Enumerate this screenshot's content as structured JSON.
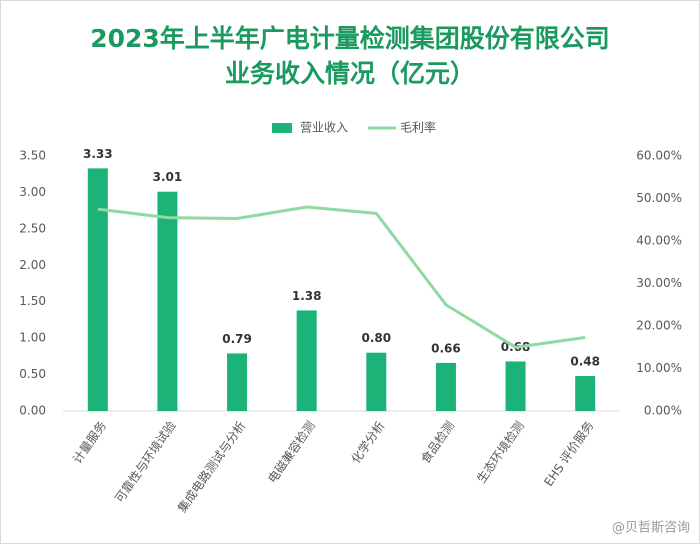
{
  "chart_data": {
    "type": "bar",
    "title": "2023年上半年广电计量检测集团股份有限公司",
    "subtitle": "业务收入情况（亿元）",
    "categories": [
      "计量服务",
      "可靠性与环境试验",
      "集成电路测试与分析",
      "电磁兼容检测",
      "化学分析",
      "食品检测",
      "生态环境检测",
      "EHS 评价服务"
    ],
    "series": [
      {
        "name": "营业收入",
        "type": "bar",
        "color": "#1bb377",
        "values": [
          3.33,
          3.01,
          0.79,
          1.38,
          0.8,
          0.66,
          0.68,
          0.48
        ],
        "value_labels": [
          "3.33",
          "3.01",
          "0.79",
          "1.38",
          "0.80",
          "0.66",
          "0.68",
          "0.48"
        ]
      },
      {
        "name": "毛利率",
        "type": "line",
        "axis": "y2",
        "color": "#8fd9a3",
        "values": [
          47.5,
          45.5,
          45.3,
          48,
          46.5,
          25,
          15,
          17.3
        ]
      }
    ],
    "ylim": [
      0,
      3.5
    ],
    "yticks": [
      {
        "value": 0,
        "label": "0.00"
      },
      {
        "value": 0.5,
        "label": "0.50"
      },
      {
        "value": 1,
        "label": "1.00"
      },
      {
        "value": 1.5,
        "label": "1.50"
      },
      {
        "value": 2,
        "label": "2.00"
      },
      {
        "value": 2.5,
        "label": "2.50"
      },
      {
        "value": 3,
        "label": "3.00"
      },
      {
        "value": 3.5,
        "label": "3.50"
      }
    ],
    "y2lim": [
      0,
      60
    ],
    "y2ticks": [
      {
        "value": 0,
        "label": "0.00%"
      },
      {
        "value": 10,
        "label": "10.00%"
      },
      {
        "value": 20,
        "label": "20.00%"
      },
      {
        "value": 30,
        "label": "30.00%"
      },
      {
        "value": 40,
        "label": "40.00%"
      },
      {
        "value": 50,
        "label": "50.00%"
      },
      {
        "value": 60,
        "label": "60.00%"
      }
    ],
    "grid": false,
    "legend": "top",
    "watermark": "@贝哲斯咨询"
  }
}
